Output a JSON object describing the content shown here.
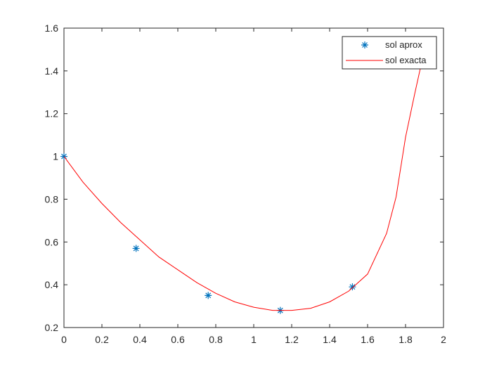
{
  "chart_data": {
    "type": "line",
    "xlim": [
      0,
      2
    ],
    "ylim": [
      0.2,
      1.6
    ],
    "xticks": [
      0,
      0.2,
      0.4,
      0.6,
      0.8,
      1,
      1.2,
      1.4,
      1.6,
      1.8,
      2
    ],
    "yticks": [
      0.2,
      0.4,
      0.6,
      0.8,
      1,
      1.2,
      1.4,
      1.6
    ],
    "legend": "upper right",
    "series": [
      {
        "name": "sol aprox",
        "color": "#0072bd",
        "marker": "*",
        "x": [
          0,
          0.38,
          0.76,
          1.14,
          1.52
        ],
        "values": [
          1.0,
          0.57,
          0.35,
          0.28,
          0.39
        ]
      },
      {
        "name": "sol exacta",
        "color": "#ff0000",
        "x": [
          0,
          0.1,
          0.2,
          0.3,
          0.4,
          0.5,
          0.6,
          0.7,
          0.8,
          0.9,
          1.0,
          1.1,
          1.2,
          1.3,
          1.4,
          1.5,
          1.6,
          1.7,
          1.75,
          1.8,
          1.85,
          1.9
        ],
        "values": [
          1.0,
          0.88,
          0.78,
          0.69,
          0.61,
          0.53,
          0.47,
          0.41,
          0.36,
          0.32,
          0.295,
          0.28,
          0.28,
          0.29,
          0.32,
          0.37,
          0.45,
          0.64,
          0.81,
          1.09,
          1.3,
          1.5
        ]
      }
    ]
  }
}
